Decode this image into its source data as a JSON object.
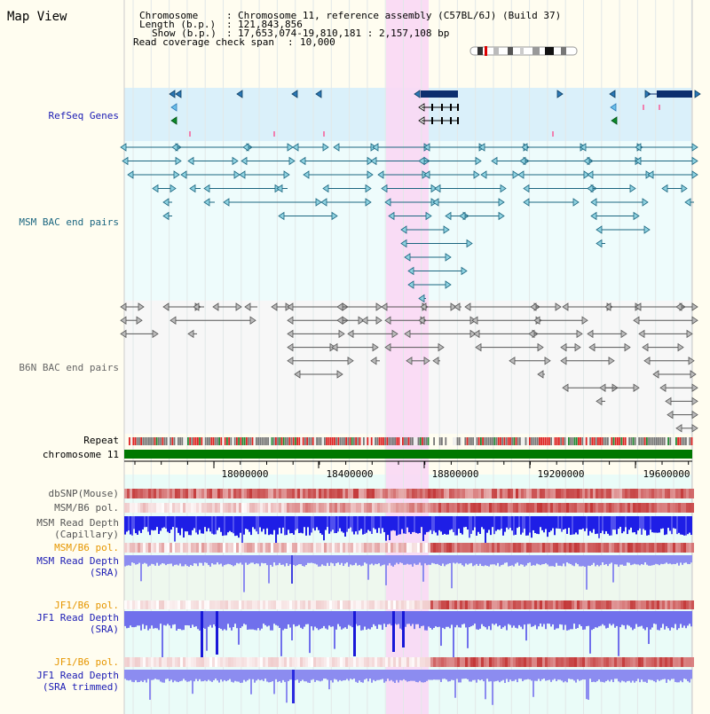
{
  "title": "Map View",
  "header": {
    "chromosome_label": "Chromosome",
    "chromosome_value": "Chromosome 11, reference assembly (C57BL/6J) (Build 37)",
    "length_label": "Length (b.p.)",
    "length_value": "121,843,856",
    "show_label": "Show (b.p.)",
    "show_value": "17,653,074-19,810,181 : 2,157,108 bp",
    "span_label": "Read coverage check span",
    "span_value": "10,000"
  },
  "tracks": {
    "refseq": "RefSeq Genes",
    "msm_bac": "MSM BAC end pairs",
    "b6n_bac": "B6N BAC end pairs",
    "repeat": "Repeat",
    "chromosome": "chromosome 11",
    "dbsnp": "dbSNP(Mouse)",
    "msm_b6_pol_1": "MSM/B6 pol.",
    "msm_depth_cap_1": "MSM Read Depth",
    "msm_depth_cap_2": "(Capillary)",
    "msm_b6_pol_2": "MSM/B6 pol.",
    "msm_depth_sra_1": "MSM Read Depth",
    "msm_depth_sra_2": "(SRA)",
    "jf1_b6_pol_1": "JF1/B6 pol.",
    "jf1_depth_sra_1": "JF1 Read Depth",
    "jf1_depth_sra_2": "(SRA)",
    "jf1_b6_pol_2": "JF1/B6 pol.",
    "jf1_depth_trim_1": "JF1 Read Depth",
    "jf1_depth_trim_2": "(SRA trimmed)"
  },
  "axis": {
    "ticks": [
      "18000000",
      "18400000",
      "18800000",
      "19200000",
      "19600000"
    ]
  },
  "colors": {
    "background": "#fffdf0",
    "refseq_band": "#daf0fa",
    "msm_band": "#eefcfc",
    "b6n_band": "#f8f8f8",
    "highlight": "#f8dcf4",
    "label_blue": "#1b1bb4",
    "label_orange": "#e69600",
    "label_gray": "#555555",
    "chrom_green": "#007800",
    "depth_blue": "#1e1ee6",
    "depth_light": "#8c8cf0",
    "pol_red": "#e63c3c"
  }
}
